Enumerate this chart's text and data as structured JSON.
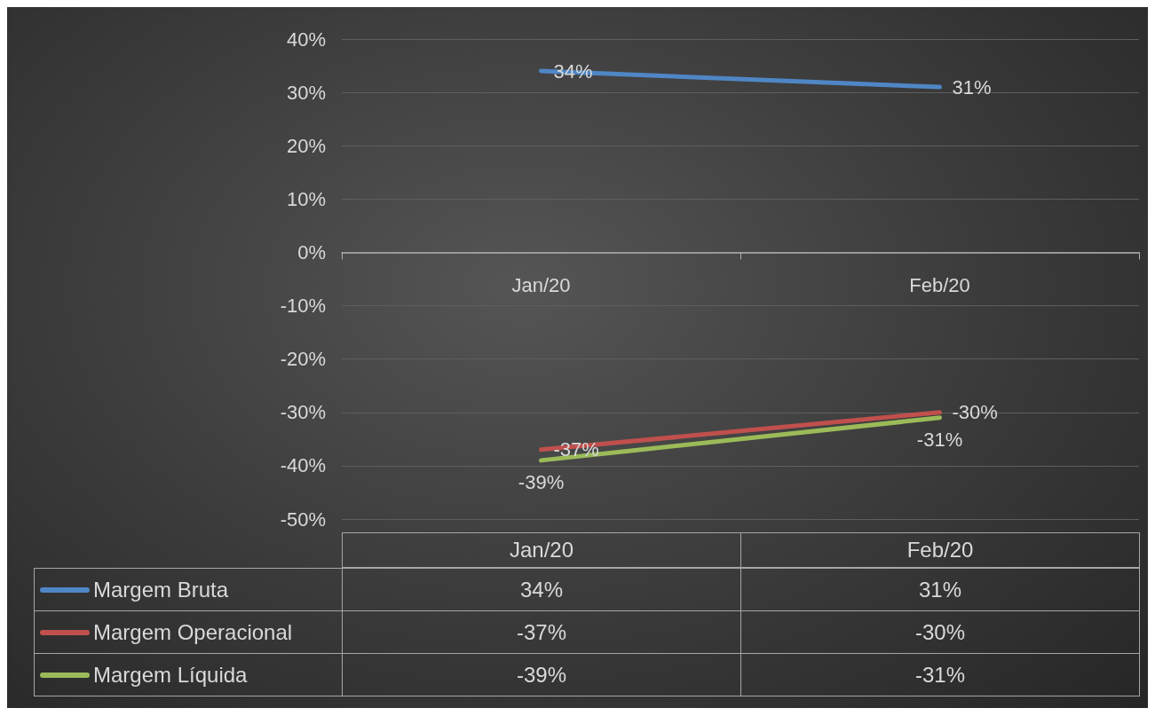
{
  "chart_data": {
    "type": "line",
    "categories": [
      "Jan/20",
      "Feb/20"
    ],
    "series": [
      {
        "name": "Margem Bruta",
        "color": "#4f86c6",
        "values": [
          34,
          31
        ],
        "value_labels": [
          "34%",
          "31%"
        ]
      },
      {
        "name": "Margem Operacional",
        "color": "#c0504d",
        "values": [
          -37,
          -30
        ],
        "value_labels": [
          "-37%",
          "-30%"
        ]
      },
      {
        "name": "Margem Líquida",
        "color": "#9bbb59",
        "values": [
          -39,
          -31
        ],
        "value_labels": [
          "-39%",
          "-31%"
        ]
      }
    ],
    "ylim": [
      -50,
      40
    ],
    "yticks": [
      {
        "value": -50,
        "label": "-50%"
      },
      {
        "value": -40,
        "label": "-40%"
      },
      {
        "value": -30,
        "label": "-30%"
      },
      {
        "value": -20,
        "label": "-20%"
      },
      {
        "value": -10,
        "label": "-10%"
      },
      {
        "value": 0,
        "label": "0%"
      },
      {
        "value": 10,
        "label": "10%"
      },
      {
        "value": 20,
        "label": "20%"
      },
      {
        "value": 30,
        "label": "30%"
      },
      {
        "value": 40,
        "label": "40%"
      }
    ],
    "grid": "y",
    "legend": "bottom",
    "marker": "none",
    "line_style": "solid"
  }
}
